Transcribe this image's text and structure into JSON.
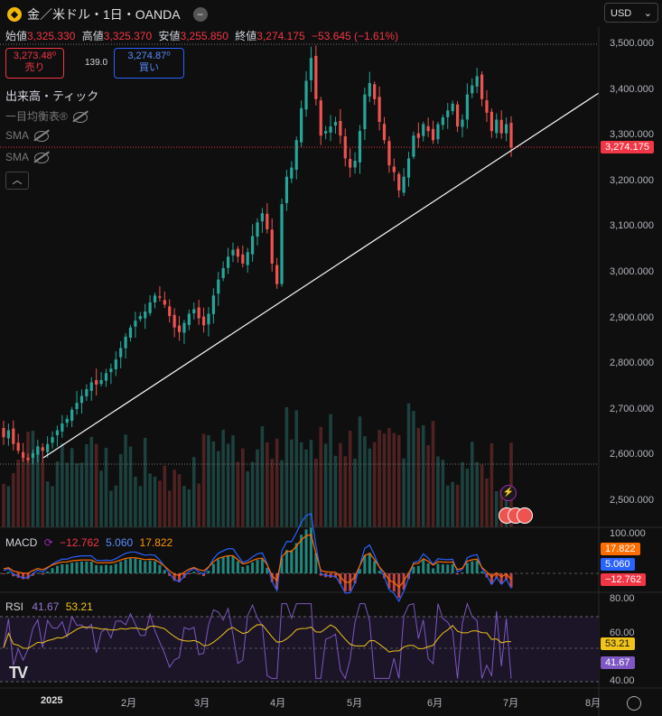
{
  "header": {
    "title": "金／米ドル・1日・OANDA",
    "logo_icon": "gold-coin-icon",
    "minus": "−"
  },
  "ohlc": {
    "open_label": "始値",
    "open": "3,325.330",
    "high_label": "高値",
    "high": "3,325.370",
    "low_label": "安値",
    "low": "3,255.850",
    "close_label": "終値",
    "close": "3,274.175",
    "change": "−53.645 (−1.61%)"
  },
  "trade": {
    "sell_price": "3,273.48⁰",
    "sell_label": "売り",
    "spread": "139.0",
    "buy_price": "3,274.87⁰",
    "buy_label": "買い"
  },
  "indicators": {
    "volume": "出来高・ティック",
    "ichimoku": "一目均衡表®",
    "sma1": "SMA",
    "sma2": "SMA"
  },
  "currency": {
    "label": "USD"
  },
  "price_axis": [
    "3,500.000",
    "3,400.000",
    "3,300.000",
    "3,200.000",
    "3,100.000",
    "3,000.000",
    "2,900.000",
    "2,800.000",
    "2,700.000",
    "2,600.000",
    "2,500.000"
  ],
  "current_price": "3,274.175",
  "macd": {
    "label": "MACD",
    "macd": "−12.762",
    "signal": "5.060",
    "hist": "17.822",
    "axis_top": "100.000",
    "tag_hist": "17.822",
    "tag_signal": "5.060",
    "tag_macd": "−12.762"
  },
  "rsi": {
    "label": "RSI",
    "value": "41.67",
    "ma": "53.21",
    "axis": [
      "80.00",
      "60.00",
      "40.00"
    ],
    "tag_ma": "53.21",
    "tag_value": "41.67"
  },
  "time_axis": [
    "2025",
    "2月",
    "3月",
    "4月",
    "5月",
    "6月",
    "7月",
    "8月"
  ],
  "colors": {
    "up": "#26a69a",
    "down": "#ef5350",
    "trend": "#ffffff",
    "macd": "#2962ff",
    "signal": "#ff6d00",
    "rsi": "#7e57c2",
    "rsi_ma": "#f0c419"
  },
  "chart_data": {
    "type": "candlestick",
    "symbol": "XAU/USD",
    "interval": "1D",
    "ylim": [
      2450,
      3550
    ],
    "close_series_approx": [
      2640,
      2655,
      2625,
      2610,
      2595,
      2590,
      2605,
      2620,
      2610,
      2625,
      2640,
      2655,
      2670,
      2680,
      2700,
      2715,
      2730,
      2745,
      2760,
      2755,
      2765,
      2780,
      2790,
      2810,
      2835,
      2860,
      2880,
      2895,
      2905,
      2915,
      2935,
      2950,
      2945,
      2930,
      2905,
      2880,
      2870,
      2890,
      2910,
      2920,
      2900,
      2885,
      2910,
      2950,
      2985,
      3010,
      3035,
      3050,
      3035,
      3020,
      3045,
      3080,
      3110,
      3130,
      3095,
      3020,
      2975,
      3150,
      3210,
      3230,
      3290,
      3360,
      3420,
      3470,
      3380,
      3300,
      3310,
      3320,
      3330,
      3300,
      3250,
      3230,
      3245,
      3310,
      3390,
      3415,
      3380,
      3330,
      3290,
      3235,
      3220,
      3180,
      3210,
      3250,
      3300,
      3295,
      3325,
      3310,
      3290,
      3325,
      3340,
      3355,
      3370,
      3320,
      3335,
      3390,
      3410,
      3430,
      3380,
      3350,
      3310,
      3335,
      3305,
      3325,
      3274
    ],
    "trendline": {
      "from": [
        "2025-01-03",
        2600
      ],
      "to": [
        "2025-07-15",
        3390
      ]
    },
    "indicator_macd": {
      "macd": -12.762,
      "signal": 5.06,
      "histogram": 17.822
    },
    "indicator_rsi": {
      "rsi": 41.67,
      "ma": 53.21
    }
  }
}
